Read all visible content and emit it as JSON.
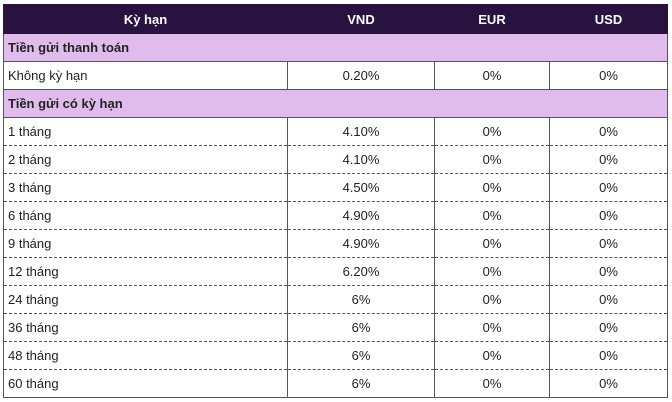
{
  "header": [
    "Kỳ hạn",
    "VND",
    "EUR",
    "USD"
  ],
  "sections": [
    {
      "title": "Tiền gửi thanh toán",
      "rows": [
        {
          "term": "Không kỳ hạn",
          "vnd": "0.20%",
          "eur": "0%",
          "usd": "0%"
        }
      ]
    },
    {
      "title": "Tiền gửi có kỳ hạn",
      "rows": [
        {
          "term": "1 tháng",
          "vnd": "4.10%",
          "eur": "0%",
          "usd": "0%"
        },
        {
          "term": "2 tháng",
          "vnd": "4.10%",
          "eur": "0%",
          "usd": "0%"
        },
        {
          "term": "3 tháng",
          "vnd": "4.50%",
          "eur": "0%",
          "usd": "0%"
        },
        {
          "term": "6 tháng",
          "vnd": "4.90%",
          "eur": "0%",
          "usd": "0%"
        },
        {
          "term": "9 tháng",
          "vnd": "4.90%",
          "eur": "0%",
          "usd": "0%"
        },
        {
          "term": "12 tháng",
          "vnd": "6.20%",
          "eur": "0%",
          "usd": "0%"
        },
        {
          "term": "24 tháng",
          "vnd": "6%",
          "eur": "0%",
          "usd": "0%"
        },
        {
          "term": "36 tháng",
          "vnd": "6%",
          "eur": "0%",
          "usd": "0%"
        },
        {
          "term": "48 tháng",
          "vnd": "6%",
          "eur": "0%",
          "usd": "0%"
        },
        {
          "term": "60 tháng",
          "vnd": "6%",
          "eur": "0%",
          "usd": "0%"
        }
      ]
    }
  ],
  "colors": {
    "header_bg": "#2a1240",
    "section_bg": "#e0bcec"
  }
}
